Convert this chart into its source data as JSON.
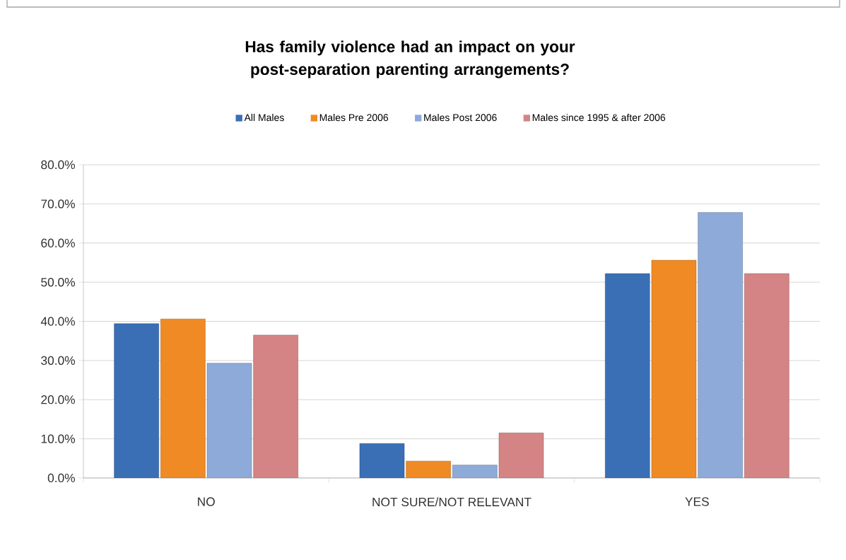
{
  "chart_data": {
    "type": "bar",
    "title": "Has family violence had an impact on your post-separation parenting arrangements?",
    "categories": [
      "NO",
      "NOT SURE/NOT RELEVANT",
      "YES"
    ],
    "series": [
      {
        "name": "All Males",
        "color": "#3a6fb5",
        "values": [
          39.4,
          8.8,
          52.2
        ]
      },
      {
        "name": "Males Pre 2006",
        "color": "#f08a24",
        "values": [
          40.6,
          4.3,
          55.6
        ]
      },
      {
        "name": "Males Post 2006",
        "color": "#8eaad8",
        "values": [
          29.3,
          3.3,
          67.8
        ]
      },
      {
        "name": "Males since 1995 & after 2006",
        "color": "#d48484",
        "values": [
          36.5,
          11.5,
          52.2
        ]
      }
    ],
    "ylim": [
      0,
      80
    ],
    "yticks": [
      {
        "value": 0,
        "label": "0.0%"
      },
      {
        "value": 10,
        "label": "10.0%"
      },
      {
        "value": 20,
        "label": "20.0%"
      },
      {
        "value": 30,
        "label": "30.0%"
      },
      {
        "value": 40,
        "label": "40.0%"
      },
      {
        "value": 50,
        "label": "50.0%"
      },
      {
        "value": 60,
        "label": "60.0%"
      },
      {
        "value": 70,
        "label": "70.0%"
      },
      {
        "value": 80,
        "label": "80.0%"
      }
    ],
    "grid": "y",
    "legend": "top"
  }
}
